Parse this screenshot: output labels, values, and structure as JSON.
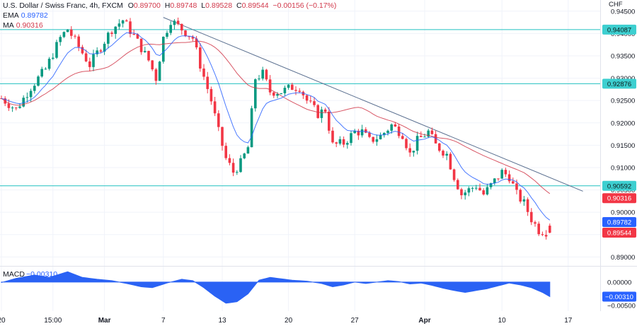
{
  "header": {
    "symbol": "U.S. Dollar / Swiss Franc, 4h, FXCM",
    "ohlc": {
      "o_label": "O",
      "o": "0.89700",
      "h_label": "H",
      "h": "0.89748",
      "l_label": "L",
      "l": "0.89528",
      "c_label": "C",
      "c": "0.89544",
      "chg": "−0.00156 (−0.17%)"
    },
    "ema_label": "EMA",
    "ema_value": "0.89782",
    "ma_label": "MA",
    "ma_value": "0.90316",
    "currency": "CHF"
  },
  "macd": {
    "label": "MACD",
    "value": "−0.00310"
  },
  "colors": {
    "up": "#089981",
    "down": "#f23645",
    "ema": "#2962ff",
    "ma": "#d1384a",
    "level": "#22c0c0",
    "trend": "#5b7090",
    "macd": "#2a62f4",
    "grid": "#f0f3fa"
  },
  "chart_data": {
    "type": "candlestick",
    "ylim": [
      0.888,
      0.9475
    ],
    "y_ticks": [
      "0.94500",
      "0.94000",
      "0.93500",
      "0.93000",
      "0.92500",
      "0.92000",
      "0.91500",
      "0.91000",
      "0.90500",
      "0.90000",
      "0.89500",
      "0.89000"
    ],
    "y_tick_values": [
      0.945,
      0.94,
      0.935,
      0.93,
      0.925,
      0.92,
      0.915,
      0.91,
      0.905,
      0.9,
      0.895,
      0.89
    ],
    "x_ticks": [
      "20",
      "15:00",
      "Mar",
      "7",
      "13",
      "20",
      "27",
      "Apr",
      "10",
      "17"
    ],
    "x_tick_index": [
      0,
      14,
      28,
      44,
      60,
      78,
      96,
      115,
      136,
      154
    ],
    "levels": [
      {
        "value": 0.94087,
        "label": "0.94087"
      },
      {
        "value": 0.92876,
        "label": "0.92876"
      },
      {
        "value": 0.90592,
        "label": "0.90592"
      }
    ],
    "trendline": {
      "x": [
        44,
        158
      ],
      "y": [
        0.9436,
        0.9047
      ]
    },
    "price_badges": [
      {
        "value": 0.90316,
        "label": "0.90316",
        "series": "ma"
      },
      {
        "value": 0.89782,
        "label": "0.89782",
        "series": "ema"
      },
      {
        "value": 0.89544,
        "label": "0.89544",
        "series": "close"
      }
    ],
    "keypoints": [
      [
        0,
        0.9255
      ],
      [
        4,
        0.923
      ],
      [
        8,
        0.928
      ],
      [
        12,
        0.932
      ],
      [
        16,
        0.939
      ],
      [
        18,
        0.941
      ],
      [
        21,
        0.937
      ],
      [
        24,
        0.933
      ],
      [
        27,
        0.937
      ],
      [
        30,
        0.941
      ],
      [
        33,
        0.943
      ],
      [
        36,
        0.9395
      ],
      [
        40,
        0.934
      ],
      [
        42,
        0.93
      ],
      [
        44,
        0.939
      ],
      [
        46,
        0.943
      ],
      [
        49,
        0.941
      ],
      [
        52,
        0.939
      ],
      [
        54,
        0.933
      ],
      [
        57,
        0.925
      ],
      [
        59,
        0.918
      ],
      [
        61,
        0.912
      ],
      [
        63,
        0.909
      ],
      [
        65,
        0.911
      ],
      [
        67,
        0.9145
      ],
      [
        69,
        0.93
      ],
      [
        71,
        0.931
      ],
      [
        73,
        0.927
      ],
      [
        76,
        0.927
      ],
      [
        79,
        0.928
      ],
      [
        81,
        0.928
      ],
      [
        83,
        0.925
      ],
      [
        86,
        0.922
      ],
      [
        88,
        0.923
      ],
      [
        90,
        0.915
      ],
      [
        93,
        0.9155
      ],
      [
        96,
        0.918
      ],
      [
        98,
        0.918
      ],
      [
        100,
        0.916
      ],
      [
        103,
        0.917
      ],
      [
        106,
        0.9195
      ],
      [
        109,
        0.9175
      ],
      [
        111,
        0.913
      ],
      [
        113,
        0.916
      ],
      [
        116,
        0.918
      ],
      [
        118,
        0.915
      ],
      [
        121,
        0.913
      ],
      [
        123,
        0.908
      ],
      [
        125,
        0.904
      ],
      [
        127,
        0.905
      ],
      [
        129,
        0.906
      ],
      [
        131,
        0.904
      ],
      [
        133,
        0.906
      ],
      [
        136,
        0.909
      ],
      [
        138,
        0.908
      ],
      [
        140,
        0.904
      ],
      [
        142,
        0.902
      ],
      [
        144,
        0.8985
      ],
      [
        146,
        0.896
      ],
      [
        149,
        0.8955
      ]
    ],
    "candle_count": 150,
    "ema_period": 10,
    "ma_period": 30,
    "macd_points": [
      [
        0,
        -0.0001
      ],
      [
        4,
        0.0008
      ],
      [
        9,
        0.0015
      ],
      [
        13,
        0.001
      ],
      [
        18,
        0.0022
      ],
      [
        22,
        0.001
      ],
      [
        26,
        0.0006
      ],
      [
        30,
        0.0003
      ],
      [
        34,
        -0.0003
      ],
      [
        38,
        -0.001
      ],
      [
        41,
        -0.0012
      ],
      [
        45,
        -0.0002
      ],
      [
        49,
        0.0006
      ],
      [
        52,
        0.0003
      ],
      [
        55,
        -0.0012
      ],
      [
        58,
        -0.003
      ],
      [
        61,
        -0.0045
      ],
      [
        64,
        -0.0042
      ],
      [
        67,
        -0.0025
      ],
      [
        70,
        0.0004
      ],
      [
        73,
        0.001
      ],
      [
        76,
        0.0007
      ],
      [
        79,
        0.0004
      ],
      [
        83,
        0.0002
      ],
      [
        87,
        -0.0003
      ],
      [
        90,
        -0.001
      ],
      [
        93,
        -0.0006
      ],
      [
        96,
        0.0
      ],
      [
        99,
        -0.0003
      ],
      [
        102,
        0.0
      ],
      [
        105,
        0.0003
      ],
      [
        108,
        0.0001
      ],
      [
        111,
        -0.0004
      ],
      [
        114,
        -0.0002
      ],
      [
        117,
        -0.0007
      ],
      [
        120,
        -0.0013
      ],
      [
        123,
        -0.0018
      ],
      [
        126,
        -0.0022
      ],
      [
        129,
        -0.0018
      ],
      [
        132,
        -0.0014
      ],
      [
        135,
        -0.0008
      ],
      [
        138,
        -0.0002
      ],
      [
        141,
        -0.0006
      ],
      [
        144,
        -0.0012
      ],
      [
        147,
        -0.0022
      ],
      [
        149,
        -0.0031
      ]
    ],
    "macd_ylim": [
      -0.0062,
      0.0033
    ],
    "macd_ticks": [
      "0.00000",
      "−0.00500"
    ],
    "macd_tick_values": [
      0.0,
      -0.005
    ]
  }
}
